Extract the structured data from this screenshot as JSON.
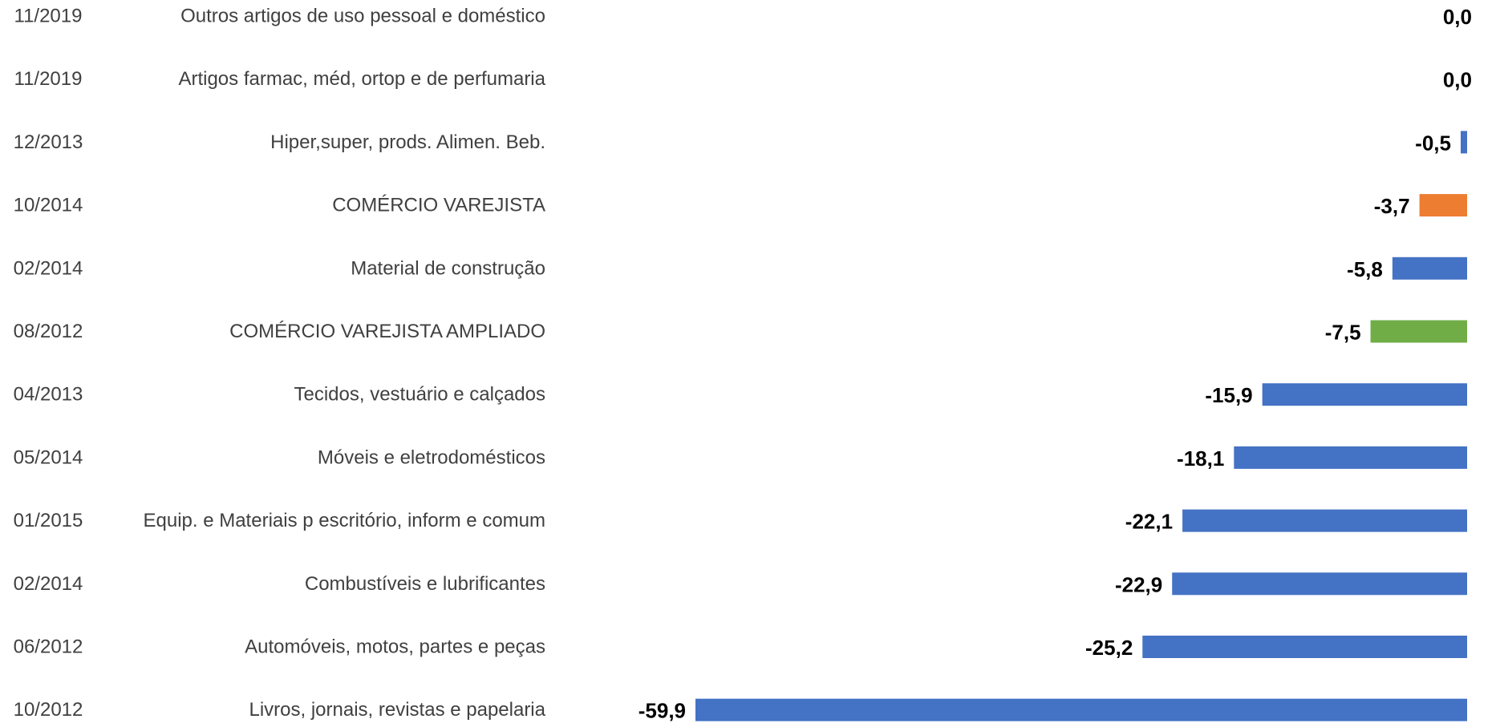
{
  "chart_data": {
    "type": "bar",
    "orientation": "horizontal",
    "dates": [
      "11/2019",
      "11/2019",
      "12/2013",
      "10/2014",
      "02/2014",
      "08/2012",
      "04/2013",
      "05/2014",
      "01/2015",
      "02/2014",
      "06/2012",
      "10/2012"
    ],
    "categories": [
      "Outros artigos de uso pessoal e doméstico",
      "Artigos farmac, méd, ortop e de perfumaria",
      "Hiper,super, prods. Alimen. Beb.",
      "COMÉRCIO VAREJISTA",
      "Material de construção",
      "COMÉRCIO VAREJISTA AMPLIADO",
      "Tecidos, vestuário e calçados",
      "Móveis e eletrodomésticos",
      "Equip. e Materiais p escritório, inform e comum",
      "Combustíveis e lubrificantes",
      "Automóveis, motos, partes e peças",
      "Livros, jornais, revistas e papelaria"
    ],
    "values": [
      0.0,
      0.0,
      -0.5,
      -3.7,
      -5.8,
      -7.5,
      -15.9,
      -18.1,
      -22.1,
      -22.9,
      -25.2,
      -59.9
    ],
    "value_labels": [
      "0,0",
      "0,0",
      "-0,5",
      "-3,7",
      "-5,8",
      "-7,5",
      "-15,9",
      "-18,1",
      "-22,1",
      "-22,9",
      "-25,2",
      "-59,9"
    ],
    "colors": [
      "#4472C4",
      "#4472C4",
      "#4472C4",
      "#ED7D31",
      "#4472C4",
      "#70AD47",
      "#4472C4",
      "#4472C4",
      "#4472C4",
      "#4472C4",
      "#4472C4",
      "#4472C4"
    ],
    "xlim": [
      -59.9,
      0
    ],
    "grid": false,
    "title": "",
    "xlabel": "",
    "ylabel": ""
  }
}
